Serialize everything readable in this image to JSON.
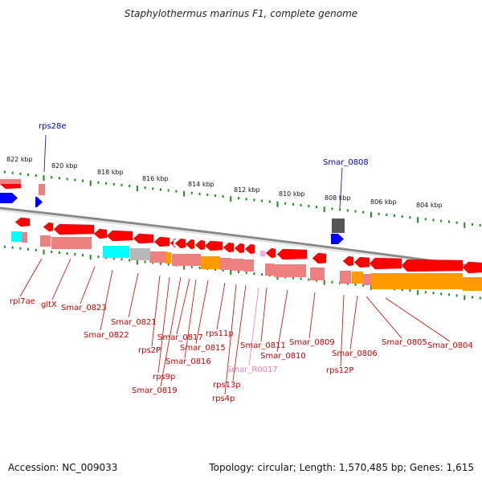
{
  "title": "Staphylothermus marinus F1, complete genome",
  "footer": {
    "accession": "Accession: NC_009033",
    "summary": "Topology: circular; Length: 1,570,485 bp; Genes: 1,615"
  },
  "colors": {
    "backbone": "#8a8a8a",
    "ticks": "#1d8a1d",
    "red_gene": "#ff0000",
    "pink_gene": "#ef8080",
    "orange_gene": "#ff9a00",
    "cyan_gene": "#00ffff",
    "blue_gene": "#0000ff",
    "gray_gene": "#b8b8b8",
    "red_label": "#cc0000",
    "blue_label": "#0000cc",
    "light_label": "#e878b0"
  },
  "scale": {
    "ticks": [
      "822 kbp",
      "820 kbp",
      "818 kbp",
      "816 kbp",
      "814 kbp",
      "812 kbp",
      "810 kbp",
      "808 kbp",
      "806 kbp",
      "804 kbp"
    ]
  },
  "labels": [
    {
      "text": "rps28e",
      "color": "blue"
    },
    {
      "text": "Smar_0808",
      "color": "blue"
    },
    {
      "text": "rpl7ae",
      "color": "red"
    },
    {
      "text": "gltX",
      "color": "red"
    },
    {
      "text": "Smar_0823",
      "color": "red"
    },
    {
      "text": "Smar_0822",
      "color": "red"
    },
    {
      "text": "Smar_0821",
      "color": "red"
    },
    {
      "text": "rps2P",
      "color": "red"
    },
    {
      "text": "rps9p",
      "color": "red"
    },
    {
      "text": "Smar_0819",
      "color": "red"
    },
    {
      "text": "Smar_0817",
      "color": "red"
    },
    {
      "text": "Smar_0816",
      "color": "red"
    },
    {
      "text": "Smar_0815",
      "color": "red"
    },
    {
      "text": "rps11p",
      "color": "red"
    },
    {
      "text": "rps4p",
      "color": "red"
    },
    {
      "text": "rps13p",
      "color": "red"
    },
    {
      "text": "Smar_R0017",
      "color": "light"
    },
    {
      "text": "Smar_0811",
      "color": "red"
    },
    {
      "text": "Smar_0810",
      "color": "red"
    },
    {
      "text": "Smar_0809",
      "color": "red"
    },
    {
      "text": "rps12P",
      "color": "red"
    },
    {
      "text": "Smar_0806",
      "color": "red"
    },
    {
      "text": "Smar_0805",
      "color": "red"
    },
    {
      "text": "Smar_0804",
      "color": "red"
    }
  ]
}
